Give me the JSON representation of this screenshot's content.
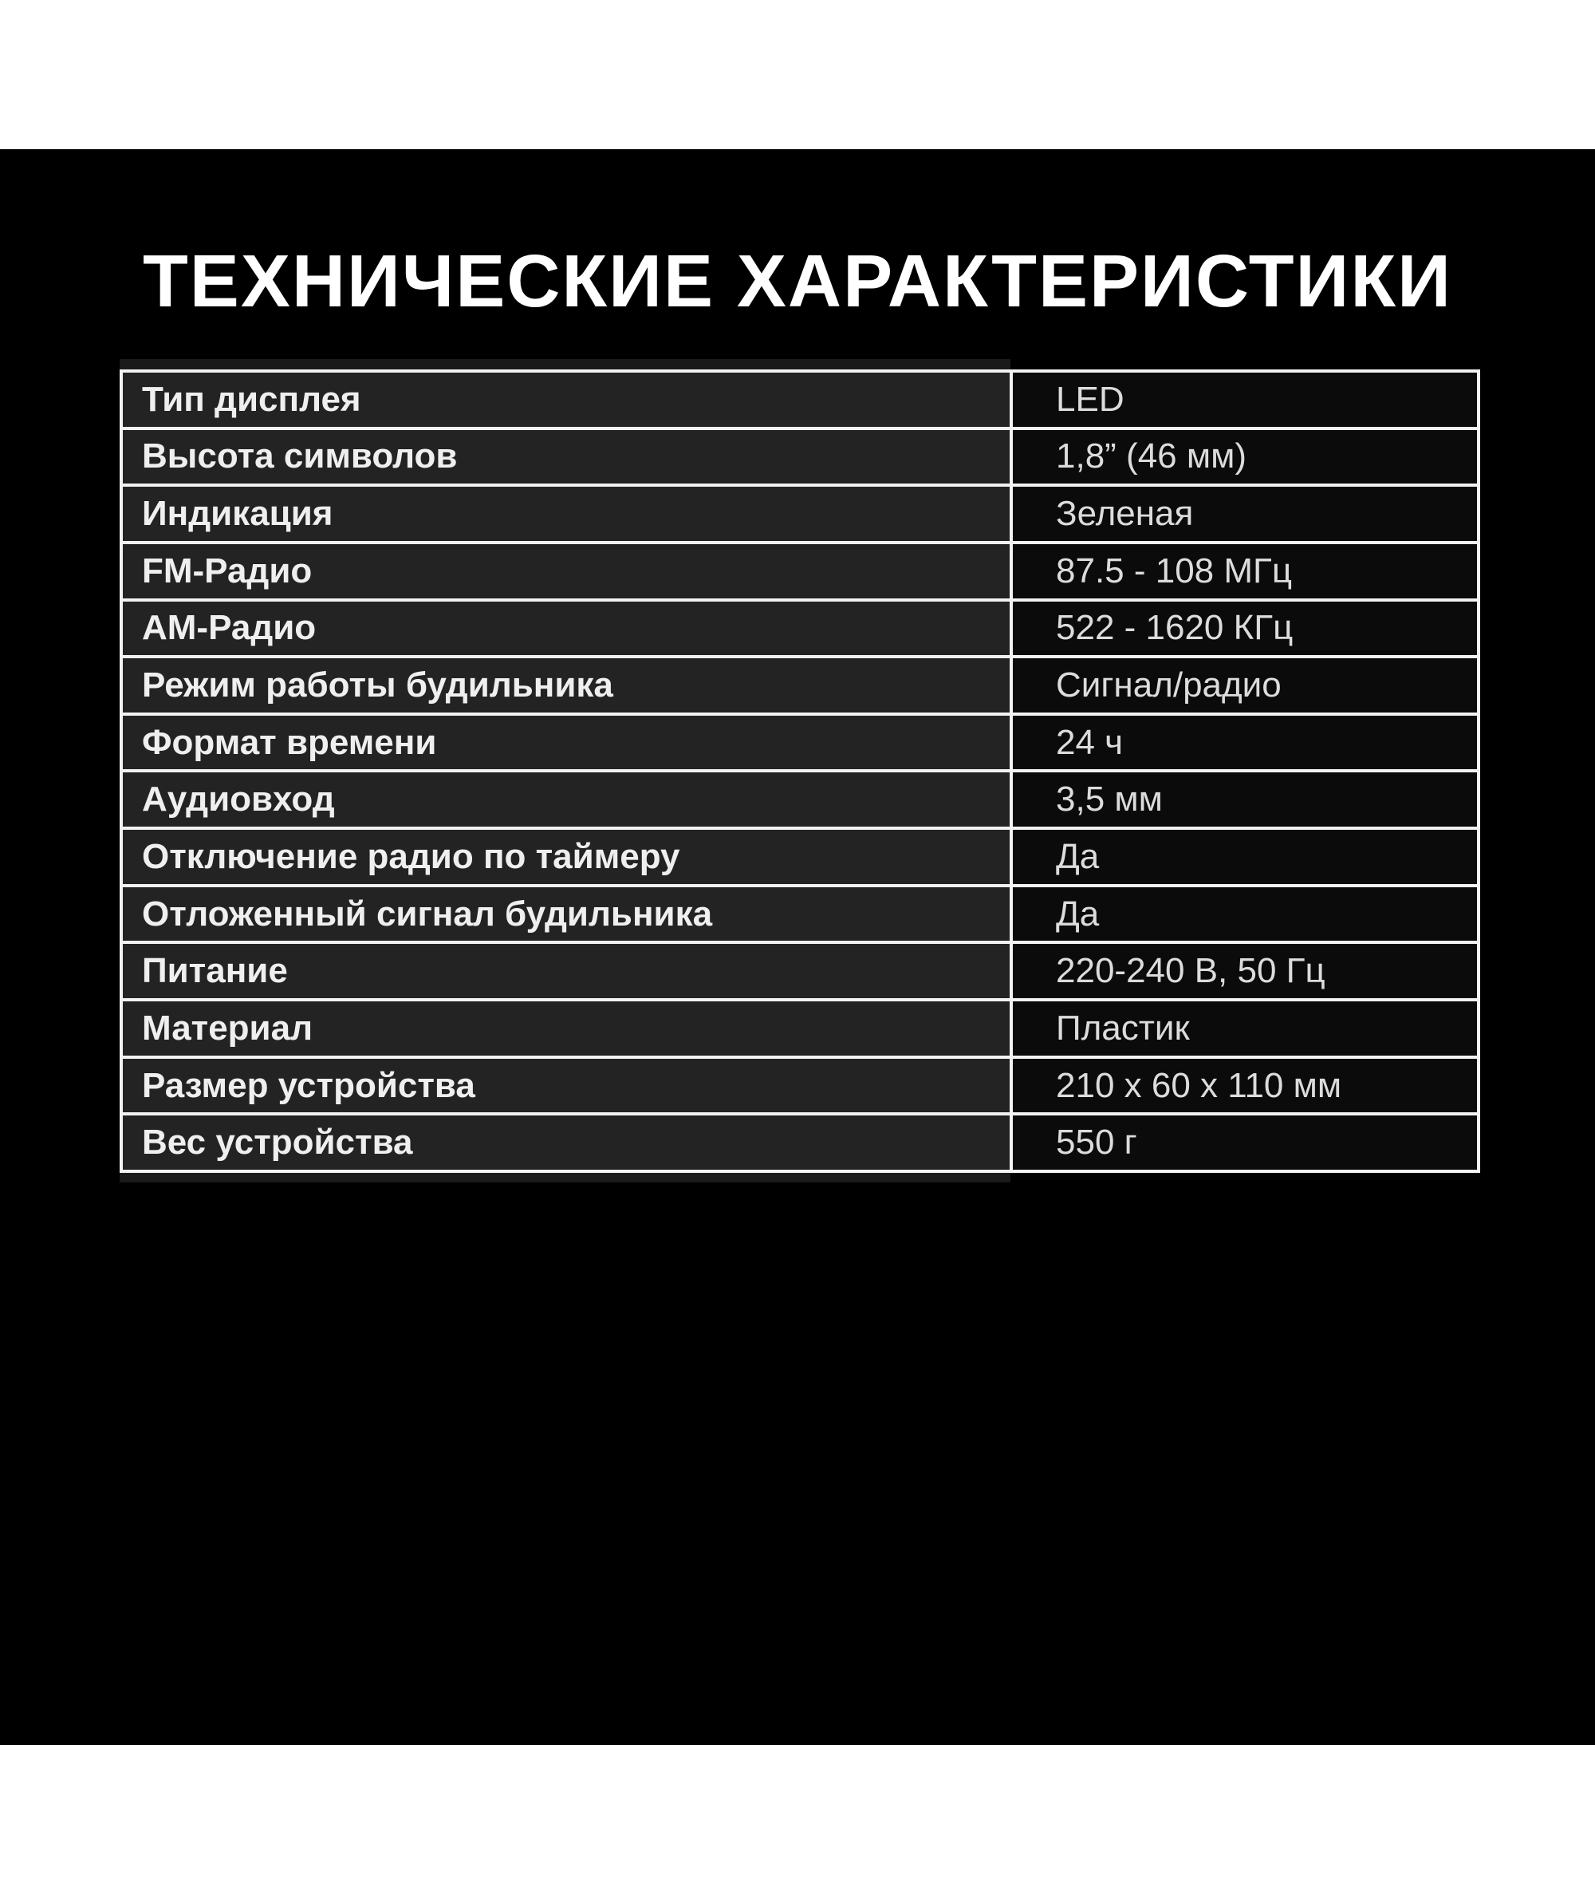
{
  "title": "ТЕХНИЧЕСКИЕ ХАРАКТЕРИСТИКИ",
  "colors": {
    "page_background": "#ffffff",
    "panel_background": "#000000",
    "title_text": "#ffffff",
    "table_border": "#f2f2f2",
    "label_cell_background": "#232323",
    "value_cell_background": "#0b0b0b",
    "label_text": "#efefef",
    "value_text": "#dcdcdc",
    "edge_shadow": "#1a1a1a"
  },
  "table": {
    "rows": [
      {
        "label": "Тип дисплея",
        "value": "LED"
      },
      {
        "label": "Высота символов",
        "value": "1,8” (46 мм)"
      },
      {
        "label": "Индикация",
        "value": "Зеленая"
      },
      {
        "label": "FM-Радио",
        "value": "87.5 - 108 МГц"
      },
      {
        "label": "АМ-Радио",
        "value": "522 - 1620 КГц"
      },
      {
        "label": "Режим работы будильника",
        "value": "Сигнал/радио"
      },
      {
        "label": "Формат времени",
        "value": "24 ч"
      },
      {
        "label": "Аудиовход",
        "value": "3,5 мм"
      },
      {
        "label": "Отключение радио по таймеру",
        "value": "Да"
      },
      {
        "label": "Отложенный сигнал будильника",
        "value": "Да"
      },
      {
        "label": "Питание",
        "value": "220-240 В, 50 Гц"
      },
      {
        "label": "Материал",
        "value": "Пластик"
      },
      {
        "label": "Размер устройства",
        "value": "210 x 60 x 110 мм"
      },
      {
        "label": "Вес устройства",
        "value": "550 г"
      }
    ]
  }
}
